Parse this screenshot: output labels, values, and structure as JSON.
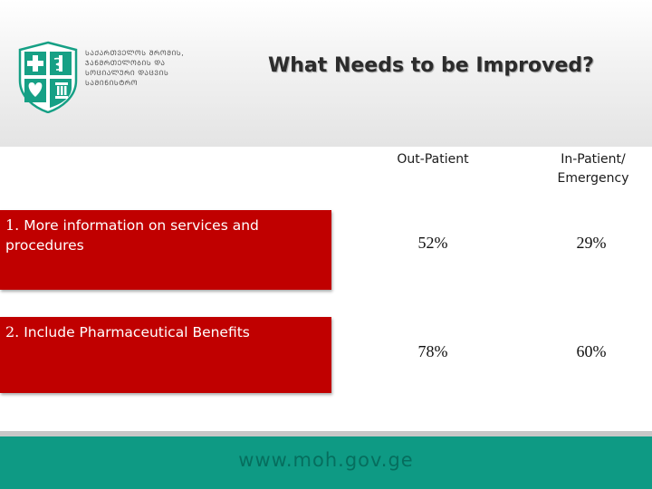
{
  "header": {
    "logo_lines": [
      "ᲡᲐᲥᲐᲠᲗᲕᲔᲚᲝᲡ ᲨᲠᲝᲛᲘᲡ,",
      "ᲯᲐᲜᲛᲠᲗᲔᲚᲝᲑᲘᲡ ᲓᲐ",
      "ᲡᲝᲪᲘᲐᲚᲣᲠᲘ ᲓᲐᲪᲕᲘᲡ",
      "ᲡᲐᲛᲘᲜᲘᲡᲢᲠᲝ"
    ],
    "title": "What Needs to be Improved?"
  },
  "table": {
    "columns": [
      "Out-Patient",
      "In-Patient/\nEmergency"
    ],
    "rows": [
      {
        "num": "1.",
        "label": "More information on services and procedures",
        "out_patient": "52%",
        "in_patient": "29%"
      },
      {
        "num": "2.",
        "label": "Include Pharmaceutical Benefits",
        "out_patient": "78%",
        "in_patient": "60%"
      }
    ]
  },
  "footer": {
    "url": "www.moh.gov.ge"
  },
  "colors": {
    "row_fill": "#c00000",
    "footer": "#0e9a84",
    "logo_green": "#16a085"
  }
}
